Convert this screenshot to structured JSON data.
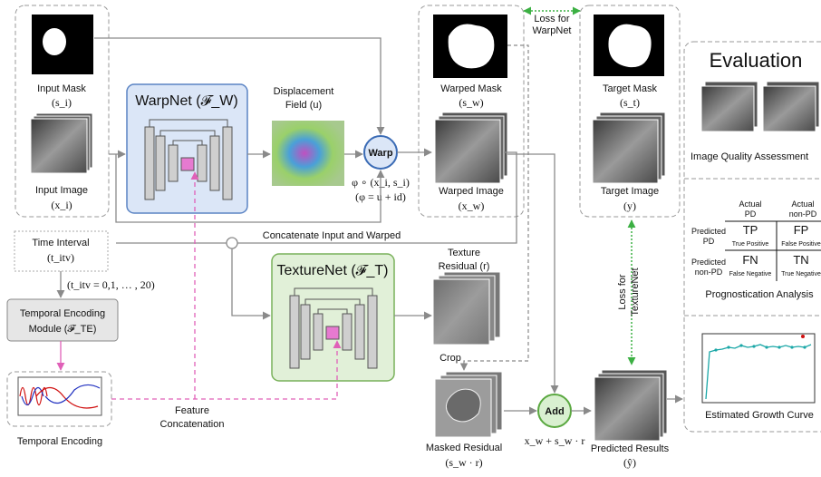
{
  "labels": {
    "input_mask": "Input Mask",
    "input_mask_sym": "(s_i)",
    "input_image": "Input Image",
    "input_image_sym": "(x_i)",
    "warpnet": "WarpNet (𝓕_W)",
    "displacement_field": "Displacement",
    "displacement_field2": "Field (u)",
    "warp": "Warp",
    "warp_eq1": "φ ∘ (x_i, s_i)",
    "warp_eq2": "(φ = u + id)",
    "warped_mask": "Warped Mask",
    "warped_mask_sym": "(s_w)",
    "warped_image": "Warped Image",
    "warped_image_sym": "(x_w)",
    "loss_warpnet_1": "Loss for",
    "loss_warpnet_2": "WarpNet",
    "target_mask": "Target Mask",
    "target_mask_sym": "(s_t)",
    "target_image": "Target Image",
    "target_image_sym": "(y)",
    "concat": "Concatenate Input and Warped",
    "time_interval": "Time Interval",
    "time_interval_sym": "(t_itv)",
    "time_range": "(t_itv = 0,1, … , 20)",
    "tem_1": "Temporal Encoding",
    "tem_2": "Module (𝓕_TE)",
    "temporal_encoding": "Temporal Encoding",
    "feature_concat_1": "Feature",
    "feature_concat_2": "Concatenation",
    "texturenet": "TextureNet (𝓕_T)",
    "texture_residual_1": "Texture",
    "texture_residual_2": "Residual (r)",
    "crop": "Crop",
    "masked_residual": "Masked Residual",
    "masked_residual_sym": "(s_w · r)",
    "add": "Add",
    "add_eq": "x_w + s_w · r",
    "predicted_results": "Predicted Results",
    "predicted_results_sym": "(ŷ)",
    "loss_texturenet_1": "Loss for",
    "loss_texturenet_2": "TextureNet",
    "evaluation": "Evaluation",
    "image_quality": "Image Quality Assessment",
    "prognostication": "Prognostication Analysis",
    "growth_curve": "Estimated Growth Curve"
  },
  "confusion": {
    "actual_pd": "Actual PD",
    "actual_pd_1": "Actual",
    "actual_pd_2": "PD",
    "actual_npd_1": "Actual",
    "actual_npd_2": "non-PD",
    "pred_pd_1": "Predicted",
    "pred_pd_2": "PD",
    "pred_npd_1": "Predicted",
    "pred_npd_2": "non-PD",
    "tp": "TP",
    "tp_full": "True Positive",
    "fp": "FP",
    "fp_full": "False Positive",
    "fn": "FN",
    "fn_full": "False Negative",
    "tn": "TN",
    "tn_full": "True Negative"
  },
  "colors": {
    "warpnet_fill": "#dbe6f7",
    "warpnet_stroke": "#5b84c4",
    "texturenet_fill": "#e1f0d8",
    "texturenet_stroke": "#79b15a",
    "warp_circle_stroke": "#3a6bb5",
    "add_circle_fill": "#d9f0d0",
    "add_circle_stroke": "#5aa840",
    "pink": "#e060b8",
    "green_dotted": "#3cb043",
    "curve": "#1aa7a7"
  }
}
